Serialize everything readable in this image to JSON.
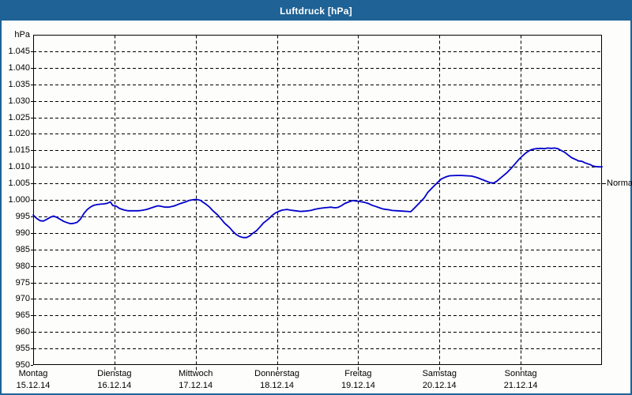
{
  "window": {
    "title": "Luftdruck [hPa]",
    "title_bar_color": "#1f6295",
    "frame_color": "#1f6295",
    "background_color": "#fdfdfb"
  },
  "chart_data": {
    "type": "line",
    "title": "Luftdruck [hPa]",
    "unit_label": "hPa",
    "line_color": "#0000cc",
    "grid_color": "#000000",
    "grid_dashed": true,
    "ylim": [
      950,
      1050
    ],
    "ytick_step": 5,
    "yticks": [
      {
        "v": 1045,
        "t": "1.045"
      },
      {
        "v": 1040,
        "t": "1.040"
      },
      {
        "v": 1035,
        "t": "1.035"
      },
      {
        "v": 1030,
        "t": "1.030"
      },
      {
        "v": 1025,
        "t": "1.025"
      },
      {
        "v": 1020,
        "t": "1.020"
      },
      {
        "v": 1015,
        "t": "1.015"
      },
      {
        "v": 1010,
        "t": "1.010"
      },
      {
        "v": 1005,
        "t": "1.005"
      },
      {
        "v": 1000,
        "t": "1.000"
      },
      {
        "v": 995,
        "t": "995"
      },
      {
        "v": 990,
        "t": "990"
      },
      {
        "v": 985,
        "t": "985"
      },
      {
        "v": 980,
        "t": "980"
      },
      {
        "v": 975,
        "t": "975"
      },
      {
        "v": 970,
        "t": "970"
      },
      {
        "v": 965,
        "t": "965"
      },
      {
        "v": 960,
        "t": "960"
      },
      {
        "v": 955,
        "t": "955"
      },
      {
        "v": 950,
        "t": "950"
      }
    ],
    "x_days": [
      {
        "name": "Montag",
        "date": "15.12.14"
      },
      {
        "name": "Dienstag",
        "date": "16.12.14"
      },
      {
        "name": "Mittwoch",
        "date": "17.12.14"
      },
      {
        "name": "Donnerstag",
        "date": "18.12.14"
      },
      {
        "name": "Freitag",
        "date": "19.12.14"
      },
      {
        "name": "Samstag",
        "date": "20.12.14"
      },
      {
        "name": "Sonntag",
        "date": "21.12.14"
      }
    ],
    "hours_total": 168,
    "normal_marker": {
      "label": "Normal",
      "value": 1005
    },
    "series": [
      {
        "name": "Luftdruck",
        "points": [
          [
            0,
            995.4
          ],
          [
            1,
            994.4
          ],
          [
            2,
            993.7
          ],
          [
            3,
            993.6
          ],
          [
            4,
            994.1
          ],
          [
            5,
            994.7
          ],
          [
            6,
            995.1
          ],
          [
            7,
            994.7
          ],
          [
            8,
            994.1
          ],
          [
            9,
            993.5
          ],
          [
            10,
            993.1
          ],
          [
            11,
            992.8
          ],
          [
            12,
            992.9
          ],
          [
            13,
            993.2
          ],
          [
            14,
            994.2
          ],
          [
            15,
            995.9
          ],
          [
            16,
            997.1
          ],
          [
            17,
            997.9
          ],
          [
            18,
            998.4
          ],
          [
            19,
            998.6
          ],
          [
            20,
            998.7
          ],
          [
            21,
            998.8
          ],
          [
            22,
            999.0
          ],
          [
            22.8,
            999.4
          ],
          [
            23.5,
            998.3
          ],
          [
            24.5,
            998.1
          ],
          [
            25.5,
            997.4
          ],
          [
            27,
            996.9
          ],
          [
            28,
            996.7
          ],
          [
            29.5,
            996.7
          ],
          [
            31,
            996.7
          ],
          [
            32,
            996.8
          ],
          [
            33.5,
            997.1
          ],
          [
            35,
            997.6
          ],
          [
            36.5,
            998.1
          ],
          [
            37,
            998.2
          ],
          [
            38,
            998.0
          ],
          [
            39,
            997.8
          ],
          [
            40,
            997.8
          ],
          [
            41.5,
            998.1
          ],
          [
            42.5,
            998.5
          ],
          [
            43.5,
            998.9
          ],
          [
            45,
            999.4
          ],
          [
            46,
            999.8
          ],
          [
            47.5,
            1000.1
          ],
          [
            48.5,
            1000.1
          ],
          [
            49.5,
            999.8
          ],
          [
            50,
            999.4
          ],
          [
            51,
            998.7
          ],
          [
            52,
            997.9
          ],
          [
            53,
            996.8
          ],
          [
            54.5,
            995.4
          ],
          [
            55.5,
            994.2
          ],
          [
            56.5,
            993.0
          ],
          [
            58,
            991.6
          ],
          [
            59,
            990.4
          ],
          [
            60,
            989.5
          ],
          [
            61,
            988.9
          ],
          [
            62,
            988.6
          ],
          [
            63,
            988.6
          ],
          [
            64,
            989.1
          ],
          [
            64.5,
            989.6
          ],
          [
            66,
            990.7
          ],
          [
            67,
            991.8
          ],
          [
            68,
            993.0
          ],
          [
            69.5,
            994.2
          ],
          [
            70.5,
            995.2
          ],
          [
            71.5,
            996.0
          ],
          [
            72.5,
            996.5
          ],
          [
            73.5,
            996.9
          ],
          [
            75,
            997.1
          ],
          [
            76,
            996.9
          ],
          [
            77.5,
            996.7
          ],
          [
            79,
            996.5
          ],
          [
            80.5,
            996.6
          ],
          [
            82,
            996.8
          ],
          [
            83,
            997.1
          ],
          [
            84.5,
            997.4
          ],
          [
            86,
            997.6
          ],
          [
            87,
            997.7
          ],
          [
            88,
            997.8
          ],
          [
            89,
            997.6
          ],
          [
            90,
            997.7
          ],
          [
            91,
            998.2
          ],
          [
            92,
            998.9
          ],
          [
            93.5,
            999.5
          ],
          [
            94.5,
            999.8
          ],
          [
            95,
            999.7
          ],
          [
            96,
            999.6
          ],
          [
            97.5,
            999.3
          ],
          [
            98,
            999.2
          ],
          [
            99,
            998.9
          ],
          [
            100,
            998.4
          ],
          [
            101.5,
            997.9
          ],
          [
            102.5,
            997.5
          ],
          [
            103.5,
            997.2
          ],
          [
            105,
            997.0
          ],
          [
            106,
            996.8
          ],
          [
            107.5,
            996.7
          ],
          [
            109,
            996.6
          ],
          [
            110.5,
            996.5
          ],
          [
            111.5,
            996.4
          ],
          [
            112.5,
            997.4
          ],
          [
            114,
            999.0
          ],
          [
            115.5,
            1000.6
          ],
          [
            116.5,
            1002.2
          ],
          [
            118,
            1003.8
          ],
          [
            119.5,
            1005.3
          ],
          [
            120.5,
            1006.3
          ],
          [
            122,
            1007.0
          ],
          [
            123,
            1007.3
          ],
          [
            125,
            1007.4
          ],
          [
            126.5,
            1007.4
          ],
          [
            128,
            1007.3
          ],
          [
            129.5,
            1007.2
          ],
          [
            131,
            1006.8
          ],
          [
            132.5,
            1006.2
          ],
          [
            134,
            1005.6
          ],
          [
            135,
            1005.2
          ],
          [
            136,
            1005.1
          ],
          [
            137,
            1005.7
          ],
          [
            138.5,
            1007.0
          ],
          [
            140,
            1008.3
          ],
          [
            141.5,
            1009.9
          ],
          [
            142.5,
            1011.1
          ],
          [
            143.5,
            1012.3
          ],
          [
            144.5,
            1013.3
          ],
          [
            145.5,
            1014.2
          ],
          [
            146.5,
            1014.9
          ],
          [
            147.5,
            1015.3
          ],
          [
            148.5,
            1015.5
          ],
          [
            150,
            1015.6
          ],
          [
            151,
            1015.5
          ],
          [
            152,
            1015.7
          ],
          [
            153,
            1015.6
          ],
          [
            154,
            1015.7
          ],
          [
            155,
            1015.5
          ],
          [
            155.5,
            1015.2
          ],
          [
            157,
            1014.4
          ],
          [
            158,
            1013.6
          ],
          [
            159,
            1012.8
          ],
          [
            160.5,
            1012.1
          ],
          [
            161,
            1011.8
          ],
          [
            162,
            1011.7
          ],
          [
            163,
            1011.2
          ],
          [
            164.5,
            1010.7
          ],
          [
            165,
            1010.4
          ],
          [
            166,
            1010.1
          ],
          [
            167,
            1010.0
          ],
          [
            168,
            1010.0
          ]
        ]
      }
    ]
  }
}
